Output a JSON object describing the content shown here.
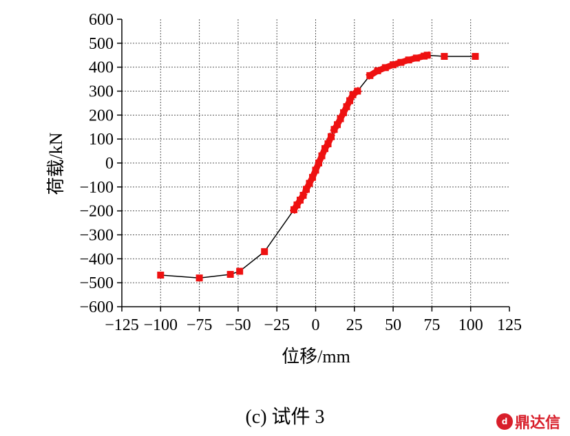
{
  "chart_data": {
    "type": "line",
    "xlabel": "位移/mm",
    "ylabel": "荷载/kN",
    "xlim": [
      -125,
      125
    ],
    "ylim": [
      -600,
      600
    ],
    "xticks": [
      -125,
      -100,
      -75,
      -50,
      -25,
      0,
      25,
      50,
      75,
      100,
      125
    ],
    "yticks": [
      -600,
      -500,
      -400,
      -300,
      -200,
      -100,
      0,
      100,
      200,
      300,
      400,
      500,
      600
    ],
    "xtick_labels": [
      "−125",
      "−100",
      "−75",
      "−50",
      "−25",
      "0",
      "25",
      "50",
      "75",
      "100",
      "125"
    ],
    "ytick_labels": [
      "−600",
      "−500",
      "−400",
      "−300",
      "−200",
      "−100",
      "0",
      "100",
      "200",
      "300",
      "400",
      "500",
      "600"
    ],
    "grid": true,
    "line_color": "#000000",
    "marker_color": "#ee1111",
    "series": [
      {
        "x": [
          -100,
          -75,
          -55,
          -49,
          -33,
          -14,
          -12,
          -10,
          -8,
          -6,
          -4,
          -2,
          0,
          2,
          4,
          6,
          8,
          10,
          12,
          14,
          16,
          18,
          20,
          22,
          24,
          27,
          35,
          40,
          45,
          50,
          55,
          60,
          65,
          70,
          72,
          83,
          103
        ],
        "y": [
          -468,
          -480,
          -465,
          -452,
          -370,
          -195,
          -175,
          -155,
          -135,
          -110,
          -85,
          -60,
          -30,
          0,
          30,
          60,
          80,
          110,
          140,
          160,
          185,
          210,
          235,
          260,
          285,
          300,
          365,
          385,
          398,
          410,
          420,
          430,
          438,
          446,
          450,
          445,
          445
        ]
      }
    ]
  },
  "caption": "(c)  试件 3",
  "watermark": {
    "text": "鼎达信",
    "logo_color": "#d81e2a"
  }
}
